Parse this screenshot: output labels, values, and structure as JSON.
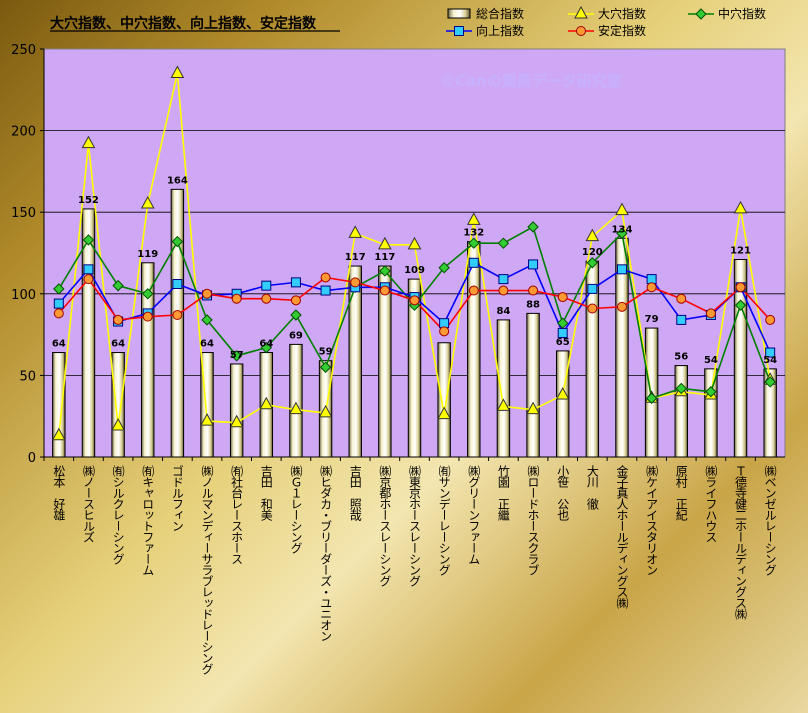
{
  "chart_data": {
    "type": "bar",
    "title": "大穴指数、中穴指数、向上指数、安定指数",
    "watermark": "©Canの競馬データ研究室",
    "ylim": [
      0,
      250
    ],
    "yticks": [
      0,
      50,
      100,
      150,
      200,
      250
    ],
    "plot_bg": "#cfa8f5",
    "categories": [
      "松本　好雄",
      "㈱ノースヒルズ",
      "㈲シルクレーシング",
      "㈲キャロットファーム",
      "ゴドルフィン",
      "㈱ノルマンディーサラブレッドレーシング",
      "㈲社台レースホース",
      "吉田　和美",
      "㈱Ｇ１レーシング",
      "㈱ヒダカ・ブリーダーズ・ユニオン",
      "吉田　照哉",
      "㈱京都ホースレーシング",
      "㈱東京ホースレーシング",
      "㈲サンデーレーシング",
      "㈱グリーンファーム",
      "竹園　正繼",
      "㈱ロードホースクラブ",
      "小笹　公也",
      "大川　徹",
      "金子真人ホールディングス㈱",
      "㈱ケイアイスタリオン",
      "原村　正紀",
      "㈱ライフハウス",
      "Ｔ德寺健二ホールディングス㈱",
      "㈱ベンゼルレーシング"
    ],
    "series": [
      {
        "name": "総合指数",
        "type": "bar",
        "color": "#efe9b8",
        "values": [
          64,
          152,
          64,
          119,
          164,
          64,
          57,
          64,
          69,
          59,
          117,
          117,
          109,
          70,
          132,
          84,
          88,
          65,
          120,
          134,
          79,
          56,
          54,
          121,
          54
        ],
        "labels": [
          "64",
          "152",
          "64",
          "119",
          "164",
          "64",
          "57",
          "64",
          "69",
          "59",
          "117",
          "117",
          "109",
          "",
          "132",
          "84",
          "88",
          "65",
          "120",
          "134",
          "79",
          "56",
          "54",
          "121",
          "54"
        ]
      },
      {
        "name": "大穴指数",
        "type": "line",
        "color": "#ffff00",
        "marker": "triangle",
        "values": [
          13,
          192,
          19,
          155,
          235,
          22,
          21,
          32,
          29,
          27,
          137,
          130,
          130,
          26,
          145,
          31,
          29,
          38,
          135,
          151,
          36,
          40,
          38,
          152,
          47
        ]
      },
      {
        "name": "中穴指数",
        "type": "line",
        "color": "#008000",
        "marker": "diamond",
        "values": [
          103,
          133,
          105,
          100,
          132,
          84,
          62,
          67,
          87,
          55,
          104,
          114,
          93,
          116,
          131,
          131,
          141,
          82,
          119,
          137,
          36,
          42,
          40,
          93,
          46
        ]
      },
      {
        "name": "向上指数",
        "type": "line",
        "color": "#0000ff",
        "marker": "square",
        "values": [
          94,
          115,
          83,
          88,
          106,
          99,
          100,
          105,
          107,
          102,
          104,
          104,
          98,
          82,
          119,
          109,
          118,
          76,
          103,
          115,
          109,
          84,
          87,
          104,
          64
        ]
      },
      {
        "name": "安定指数",
        "type": "line",
        "color": "#ff0000",
        "marker": "circle",
        "values": [
          88,
          109,
          84,
          86,
          87,
          100,
          97,
          97,
          96,
          110,
          107,
          102,
          96,
          77,
          102,
          102,
          102,
          98,
          91,
          92,
          104,
          97,
          88,
          104,
          84
        ]
      }
    ]
  }
}
